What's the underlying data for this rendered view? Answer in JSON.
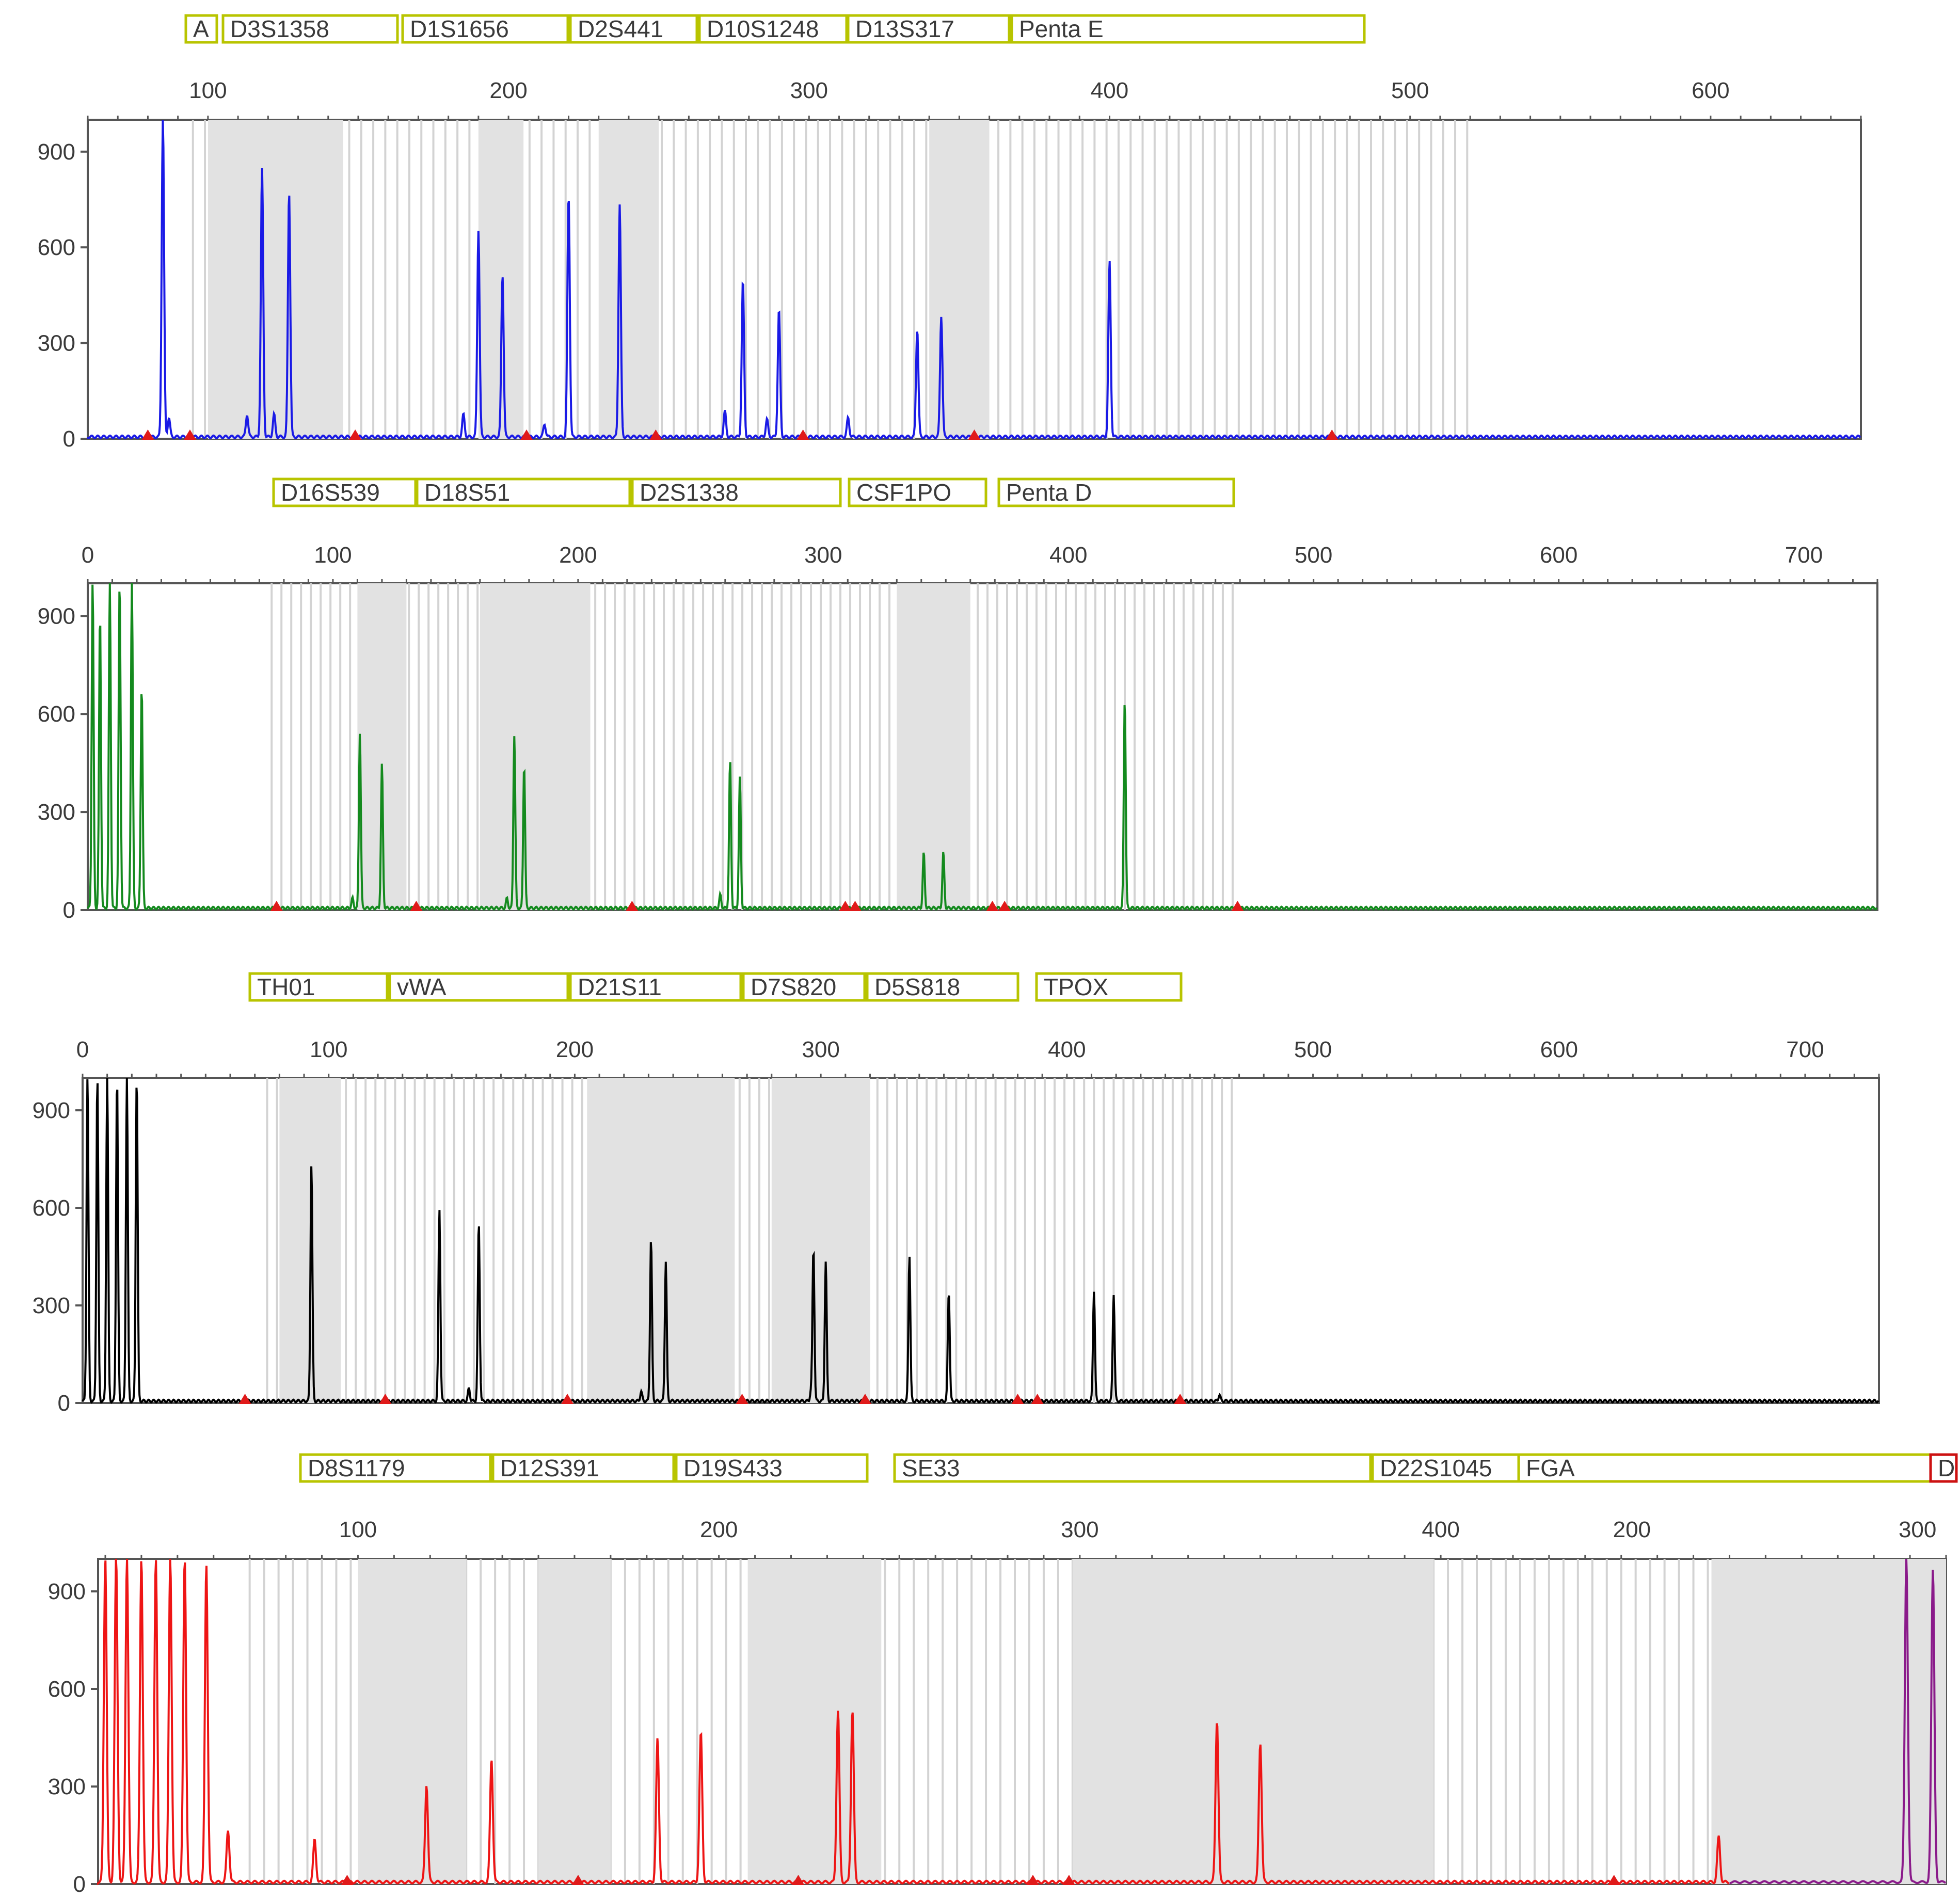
{
  "chart_data": [
    {
      "type": "line",
      "title": "",
      "series": [
        {
          "color": "#1a1ae6"
        }
      ],
      "x_ticks": [
        100,
        200,
        300,
        400,
        500,
        600
      ],
      "xlim": [
        60,
        650
      ],
      "y_ticks": [
        0,
        300,
        600,
        900
      ],
      "ylim": [
        0,
        1000
      ],
      "markers": [
        "A",
        "D3S1358",
        "D1S1656",
        "D2S441",
        "D10S1248",
        "D13S317",
        "Penta E"
      ],
      "bins": [
        [
          100,
          145
        ],
        [
          190,
          205
        ],
        [
          230,
          250
        ],
        [
          340,
          360
        ]
      ],
      "peaks": [
        [
          85,
          1000
        ],
        [
          87,
          60
        ],
        [
          113,
          70
        ],
        [
          118,
          840
        ],
        [
          122,
          70
        ],
        [
          127,
          770
        ],
        [
          185,
          70
        ],
        [
          190,
          650
        ],
        [
          198,
          510
        ],
        [
          212,
          40
        ],
        [
          220,
          760
        ],
        [
          237,
          730
        ],
        [
          272,
          80
        ],
        [
          278,
          490
        ],
        [
          286,
          55
        ],
        [
          290,
          400
        ],
        [
          313,
          60
        ],
        [
          336,
          340
        ],
        [
          344,
          380
        ],
        [
          400,
          550
        ]
      ],
      "red_flags": [
        80,
        94,
        149,
        206,
        249,
        298,
        355,
        474
      ]
    },
    {
      "type": "line",
      "title": "",
      "series": [
        {
          "color": "#148a1e"
        }
      ],
      "x_ticks": [
        0,
        100,
        200,
        300,
        400,
        500,
        600,
        700
      ],
      "xlim": [
        0,
        730
      ],
      "y_ticks": [
        0,
        300,
        600,
        900
      ],
      "ylim": [
        0,
        1000
      ],
      "markers": [
        "D16S539",
        "D18S51",
        "D2S1338",
        "CSF1PO",
        "Penta D"
      ],
      "bins": [
        [
          110,
          130
        ],
        [
          160,
          205
        ],
        [
          330,
          360
        ]
      ],
      "peaks": [
        [
          2,
          1000
        ],
        [
          5,
          900
        ],
        [
          9,
          1000
        ],
        [
          13,
          1000
        ],
        [
          18,
          1000
        ],
        [
          22,
          680
        ],
        [
          108,
          30
        ],
        [
          111,
          540
        ],
        [
          120,
          440
        ],
        [
          171,
          30
        ],
        [
          174,
          530
        ],
        [
          178,
          440
        ],
        [
          258,
          40
        ],
        [
          262,
          450
        ],
        [
          266,
          400
        ],
        [
          341,
          170
        ],
        [
          349,
          170
        ],
        [
          423,
          640
        ]
      ],
      "red_flags": [
        77,
        134,
        222,
        309,
        313,
        369,
        374,
        469
      ]
    },
    {
      "type": "line",
      "title": "",
      "series": [
        {
          "color": "#000000"
        }
      ],
      "x_ticks": [
        0,
        100,
        200,
        300,
        400,
        500,
        600,
        700
      ],
      "xlim": [
        0,
        730
      ],
      "y_ticks": [
        0,
        300,
        600,
        900
      ],
      "ylim": [
        0,
        1000
      ],
      "markers": [
        "TH01",
        "vWA",
        "D21S11",
        "D7S820",
        "D5S818",
        "TPOX"
      ],
      "bins": [
        [
          80,
          105
        ],
        [
          205,
          265
        ],
        [
          280,
          320
        ]
      ],
      "peaks": [
        [
          2,
          1000
        ],
        [
          6,
          1000
        ],
        [
          10,
          1000
        ],
        [
          14,
          1000
        ],
        [
          18,
          1000
        ],
        [
          22,
          1000
        ],
        [
          93,
          730
        ],
        [
          145,
          590
        ],
        [
          157,
          40
        ],
        [
          161,
          550
        ],
        [
          227,
          30
        ],
        [
          231,
          500
        ],
        [
          237,
          430
        ],
        [
          296,
          30
        ],
        [
          297,
          470
        ],
        [
          302,
          430
        ],
        [
          336,
          450
        ],
        [
          352,
          340
        ],
        [
          411,
          340
        ],
        [
          419,
          330
        ],
        [
          462,
          20
        ]
      ],
      "red_flags": [
        66,
        123,
        197,
        268,
        318,
        380,
        388,
        446
      ]
    },
    {
      "type": "line",
      "title": "",
      "series": [
        {
          "color": "#ee1515"
        },
        {
          "color": "#8a1a8a"
        }
      ],
      "x_ticks": [
        100,
        200,
        300,
        400
      ],
      "x_ticks_right": [
        200,
        300
      ],
      "xlim": [
        28,
        540
      ],
      "y_ticks": [
        0,
        300,
        600,
        900
      ],
      "ylim": [
        0,
        1000
      ],
      "markers": [
        "D8S1179",
        "D12S391",
        "D19S433",
        "SE33",
        "D22S1045",
        "FGA",
        "D"
      ],
      "bins": [
        [
          100,
          130
        ],
        [
          150,
          170
        ],
        [
          208,
          245
        ],
        [
          298,
          398
        ],
        [
          475,
          540
        ]
      ],
      "peaks": [
        [
          30,
          1000
        ],
        [
          33,
          1000
        ],
        [
          36,
          1000
        ],
        [
          40,
          1000
        ],
        [
          44,
          1000
        ],
        [
          48,
          1000
        ],
        [
          52,
          1000
        ],
        [
          58,
          980
        ],
        [
          64,
          160
        ],
        [
          88,
          130
        ],
        [
          119,
          300
        ],
        [
          137,
          380
        ],
        [
          183,
          440
        ],
        [
          195,
          460
        ],
        [
          233,
          530
        ],
        [
          237,
          530
        ],
        [
          338,
          500
        ],
        [
          350,
          430
        ],
        [
          477,
          140
        ],
        [
          489,
          240
        ]
      ],
      "red_flags": [
        97,
        161,
        222,
        287,
        297,
        448
      ],
      "purple_peaks": [
        [
          180,
          1000
        ],
        [
          183,
          960
        ]
      ]
    }
  ]
}
